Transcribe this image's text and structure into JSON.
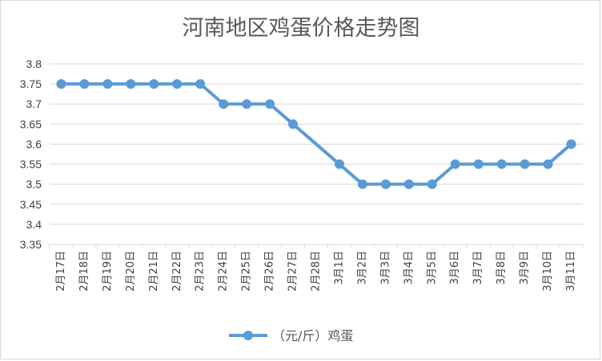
{
  "chart_data": {
    "type": "line",
    "title": "河南地区鸡蛋价格走势图",
    "xlabel": "",
    "ylabel": "",
    "ylim": [
      3.35,
      3.8
    ],
    "yticks": [
      "3.35",
      "3.4",
      "3.45",
      "3.5",
      "3.55",
      "3.6",
      "3.65",
      "3.7",
      "3.75",
      "3.8"
    ],
    "grid": true,
    "legend": "bottom",
    "categories": [
      "2月17日",
      "2月18日",
      "2月19日",
      "2月20日",
      "2月21日",
      "2月22日",
      "2月23日",
      "2月24日",
      "2月25日",
      "2月26日",
      "2月27日",
      "2月28日",
      "3月1日",
      "3月2日",
      "3月3日",
      "3月4日",
      "3月5日",
      "3月6日",
      "3月7日",
      "3月8日",
      "3月9日",
      "3月10日",
      "3月11日"
    ],
    "series": [
      {
        "name": "（元/斤）鸡蛋",
        "color": "#5b9bd5",
        "values": [
          3.75,
          3.75,
          3.75,
          3.75,
          3.75,
          3.75,
          3.75,
          3.7,
          3.7,
          3.7,
          3.65,
          null,
          3.55,
          3.5,
          3.5,
          3.5,
          3.5,
          3.55,
          3.55,
          3.55,
          3.55,
          3.55,
          3.6
        ]
      }
    ]
  }
}
